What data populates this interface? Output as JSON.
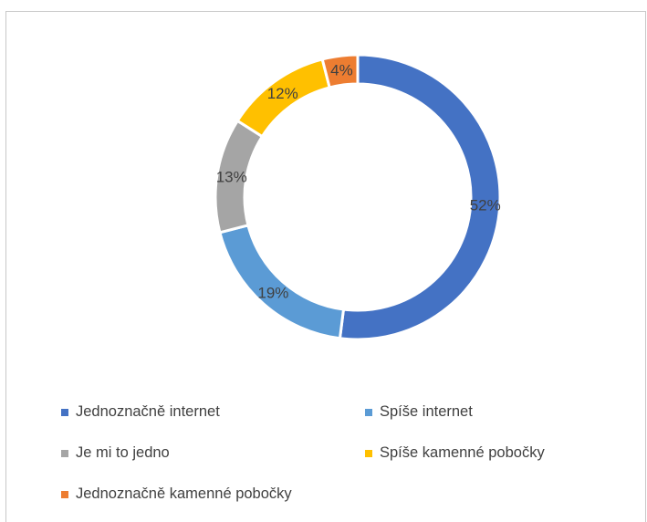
{
  "chart_data": {
    "type": "pie",
    "variant": "donut",
    "legend_position": "bottom",
    "slices": [
      {
        "name": "Jednoznačně internet",
        "value": 52,
        "label": "52%",
        "color": "#4472c4"
      },
      {
        "name": "Spíše internet",
        "value": 19,
        "label": "19%",
        "color": "#5b9bd5"
      },
      {
        "name": "Je mi to jedno",
        "value": 13,
        "label": "13%",
        "color": "#a5a5a5"
      },
      {
        "name": "Spíše kamenné pobočky",
        "value": 12,
        "label": "12%",
        "color": "#ffc000"
      },
      {
        "name": "Jednoznačně kamenné pobočky",
        "value": 4,
        "label": "4%",
        "color": "#ed7d31"
      }
    ]
  }
}
